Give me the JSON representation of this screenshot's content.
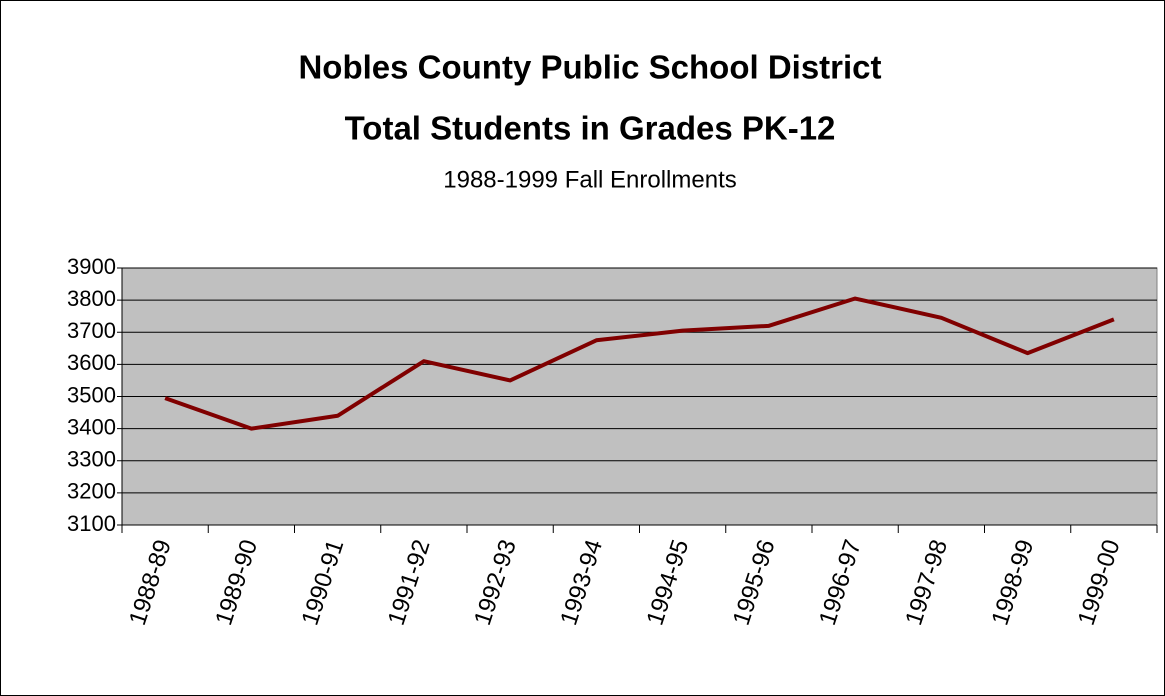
{
  "chart_data": {
    "type": "line",
    "title": [
      "Nobles County Public School District",
      "Total Students in Grades PK-12"
    ],
    "subtitle": "1988-1999 Fall Enrollments",
    "categories": [
      "1988-89",
      "1989-90",
      "1990-91",
      "1991-92",
      "1992-93",
      "1993-94",
      "1994-95",
      "1995-96",
      "1996-97",
      "1997-98",
      "1998-99",
      "1999-00"
    ],
    "values": [
      3495,
      3400,
      3440,
      3610,
      3550,
      3675,
      3705,
      3720,
      3805,
      3745,
      3635,
      3740
    ],
    "color": "#800000",
    "ylim": [
      3100,
      3900
    ],
    "yticks": [
      3100,
      3200,
      3300,
      3400,
      3500,
      3600,
      3700,
      3800,
      3900
    ],
    "grid": true
  }
}
